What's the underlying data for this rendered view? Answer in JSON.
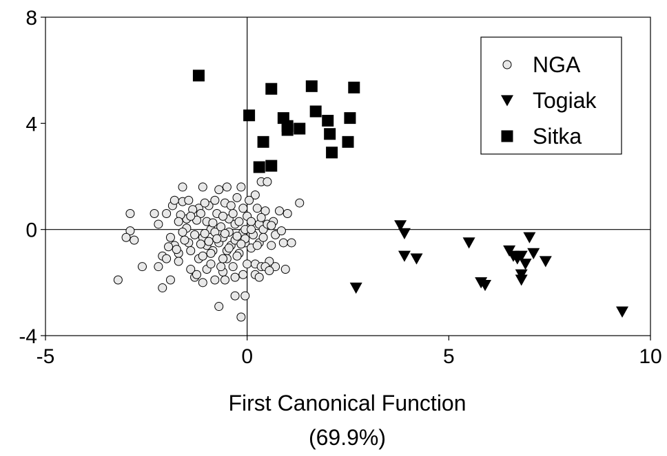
{
  "chart_data": {
    "type": "scatter",
    "title": "",
    "xlabel": "First Canonical Function",
    "xlabel_sub": "(69.9%)",
    "ylabel": "",
    "xlim": [
      -5,
      10
    ],
    "ylim": [
      -4,
      8
    ],
    "x_ticks": [
      "-5",
      "0",
      "5",
      "10"
    ],
    "y_ticks": [
      "-4",
      "0",
      "4",
      "8"
    ],
    "zero_lines": true,
    "grid": false,
    "legend_position": "top-right",
    "series": [
      {
        "name": "NGA",
        "marker": "open-circle",
        "color": "#000000",
        "fill": "#e8e8e8",
        "points": [
          [
            -3.2,
            -1.9
          ],
          [
            -2.9,
            0.6
          ],
          [
            -2.9,
            -0.05
          ],
          [
            -3.0,
            -0.3
          ],
          [
            -2.8,
            -0.4
          ],
          [
            -2.6,
            -1.4
          ],
          [
            -2.3,
            0.6
          ],
          [
            -2.2,
            0.2
          ],
          [
            -2.2,
            -1.4
          ],
          [
            -2.1,
            -1.0
          ],
          [
            -2.0,
            -1.1
          ],
          [
            -2.1,
            -2.2
          ],
          [
            -1.9,
            -1.9
          ],
          [
            -1.85,
            0.9
          ],
          [
            -1.8,
            1.1
          ],
          [
            -1.8,
            -0.6
          ],
          [
            -1.7,
            -0.9
          ],
          [
            -1.7,
            -1.2
          ],
          [
            -1.6,
            1.6
          ],
          [
            -1.6,
            1.05
          ],
          [
            -1.5,
            0.4
          ],
          [
            -1.5,
            0.05
          ],
          [
            -1.45,
            -0.5
          ],
          [
            -1.4,
            -0.8
          ],
          [
            -1.4,
            -1.5
          ],
          [
            -1.3,
            -1.8
          ],
          [
            -1.3,
            -0.2
          ],
          [
            -1.2,
            0.8
          ],
          [
            -1.2,
            -1.1
          ],
          [
            -1.1,
            1.6
          ],
          [
            -1.1,
            -0.3
          ],
          [
            -1.1,
            -1.0
          ],
          [
            -1.0,
            0.3
          ],
          [
            -1.0,
            -0.6
          ],
          [
            -1.0,
            -1.5
          ],
          [
            -0.95,
            0.9
          ],
          [
            -0.9,
            0.0
          ],
          [
            -0.9,
            -1.3
          ],
          [
            -0.85,
            -0.8
          ],
          [
            -0.8,
            -0.1
          ],
          [
            -0.8,
            -1.9
          ],
          [
            -0.75,
            0.6
          ],
          [
            -0.7,
            -0.5
          ],
          [
            -0.7,
            -2.9
          ],
          [
            -0.65,
            0.1
          ],
          [
            -0.6,
            -0.3
          ],
          [
            -0.6,
            -1.6
          ],
          [
            -0.55,
            1.0
          ],
          [
            -0.5,
            -0.8
          ],
          [
            -0.5,
            -1.1
          ],
          [
            -0.45,
            0.4
          ],
          [
            -0.45,
            -0.1
          ],
          [
            -0.4,
            -0.6
          ],
          [
            -0.35,
            -1.4
          ],
          [
            -0.3,
            0.2
          ],
          [
            -0.3,
            -0.4
          ],
          [
            -0.2,
            -0.9
          ],
          [
            -0.15,
            1.6
          ],
          [
            -0.15,
            -3.3
          ],
          [
            -0.1,
            0.8
          ],
          [
            -0.1,
            -0.1
          ],
          [
            -0.05,
            -0.5
          ],
          [
            -0.05,
            -2.5
          ],
          [
            0.0,
            0.5
          ],
          [
            0.0,
            -1.3
          ],
          [
            -0.25,
            1.2
          ],
          [
            -0.35,
            0.6
          ],
          [
            -0.5,
            1.6
          ],
          [
            -0.6,
            0.5
          ],
          [
            -0.65,
            -1.4
          ],
          [
            -0.9,
            -0.9
          ],
          [
            -1.15,
            0.6
          ],
          [
            -1.25,
            0.35
          ],
          [
            -1.35,
            0.75
          ],
          [
            -1.55,
            -0.4
          ],
          [
            -1.65,
            0.55
          ],
          [
            -1.75,
            -0.75
          ],
          [
            -1.95,
            -0.65
          ],
          [
            -0.75,
            -0.35
          ],
          [
            -0.85,
            0.25
          ],
          [
            -0.95,
            -0.45
          ],
          [
            -1.05,
            -0.15
          ],
          [
            -0.55,
            -0.15
          ],
          [
            -0.4,
            0.9
          ],
          [
            -0.2,
            0.3
          ],
          [
            0.1,
            -0.7
          ],
          [
            0.1,
            0.3
          ],
          [
            0.2,
            -1.3
          ],
          [
            0.2,
            -1.7
          ],
          [
            0.2,
            1.3
          ],
          [
            0.3,
            0.2
          ],
          [
            0.3,
            -0.5
          ],
          [
            0.3,
            -1.8
          ],
          [
            0.35,
            1.8
          ],
          [
            0.4,
            0.0
          ],
          [
            0.4,
            -0.3
          ],
          [
            0.5,
            1.8
          ],
          [
            0.6,
            -0.6
          ],
          [
            0.7,
            -1.4
          ],
          [
            0.7,
            -0.2
          ],
          [
            0.8,
            0.7
          ],
          [
            0.9,
            -0.5
          ],
          [
            0.05,
            1.1
          ],
          [
            0.15,
            -0.2
          ],
          [
            -0.25,
            -1.0
          ],
          [
            -0.3,
            -1.8
          ],
          [
            0.55,
            -1.2
          ],
          [
            0.95,
            -1.5
          ],
          [
            0.45,
            0.7
          ],
          [
            0.25,
            0.8
          ],
          [
            -1.45,
            1.1
          ],
          [
            -1.25,
            -1.7
          ],
          [
            -1.15,
            -0.55
          ],
          [
            -1.6,
            -0.1
          ],
          [
            -1.7,
            0.3
          ],
          [
            -1.9,
            -0.3
          ],
          [
            -2.0,
            0.6
          ],
          [
            -1.4,
            0.5
          ],
          [
            -1.05,
            1.0
          ],
          [
            -0.8,
            1.1
          ],
          [
            -0.7,
            1.5
          ],
          [
            -0.6,
            -1.1
          ],
          [
            -0.45,
            -0.7
          ],
          [
            -0.25,
            -0.25
          ],
          [
            -0.05,
            0.0
          ],
          [
            0.1,
            0.0
          ],
          [
            0.25,
            -0.6
          ],
          [
            0.35,
            -1.4
          ],
          [
            -0.1,
            -1.7
          ],
          [
            -0.3,
            -2.5
          ],
          [
            -1.1,
            -2.0
          ],
          [
            -0.55,
            -1.9
          ],
          [
            -0.05,
            -0.35
          ],
          [
            -0.15,
            -0.55
          ],
          [
            0.5,
            0.2
          ],
          [
            0.65,
            0.3
          ],
          [
            0.85,
            -0.05
          ],
          [
            1.1,
            -0.5
          ],
          [
            1.3,
            1.0
          ],
          [
            1.0,
            0.6
          ],
          [
            0.45,
            -1.4
          ],
          [
            0.55,
            -1.55
          ],
          [
            0.35,
            0.45
          ],
          [
            0.6,
            0.15
          ]
        ]
      },
      {
        "name": "Togiak",
        "marker": "filled-triangle-down",
        "color": "#000000",
        "points": [
          [
            3.8,
            0.15
          ],
          [
            3.9,
            -0.15
          ],
          [
            3.9,
            -1.0
          ],
          [
            4.2,
            -1.1
          ],
          [
            2.7,
            -2.2
          ],
          [
            5.5,
            -0.5
          ],
          [
            5.8,
            -2.0
          ],
          [
            5.9,
            -2.1
          ],
          [
            6.5,
            -0.8
          ],
          [
            6.6,
            -1.0
          ],
          [
            6.7,
            -1.1
          ],
          [
            6.8,
            -1.0
          ],
          [
            6.8,
            -1.7
          ],
          [
            6.8,
            -1.9
          ],
          [
            6.9,
            -1.3
          ],
          [
            7.0,
            -0.3
          ],
          [
            7.1,
            -0.9
          ],
          [
            7.4,
            -1.2
          ],
          [
            9.3,
            -3.1
          ]
        ]
      },
      {
        "name": "Sitka",
        "marker": "filled-square",
        "color": "#000000",
        "points": [
          [
            -1.2,
            5.8
          ],
          [
            0.05,
            4.3
          ],
          [
            0.4,
            3.3
          ],
          [
            0.3,
            2.35
          ],
          [
            0.6,
            2.4
          ],
          [
            0.6,
            5.3
          ],
          [
            0.9,
            4.2
          ],
          [
            1.0,
            3.9
          ],
          [
            1.0,
            3.75
          ],
          [
            1.3,
            3.8
          ],
          [
            1.6,
            5.4
          ],
          [
            1.7,
            4.45
          ],
          [
            2.0,
            4.1
          ],
          [
            2.05,
            3.6
          ],
          [
            2.1,
            2.9
          ],
          [
            2.5,
            3.3
          ],
          [
            2.55,
            4.2
          ],
          [
            2.65,
            5.35
          ]
        ]
      }
    ]
  }
}
